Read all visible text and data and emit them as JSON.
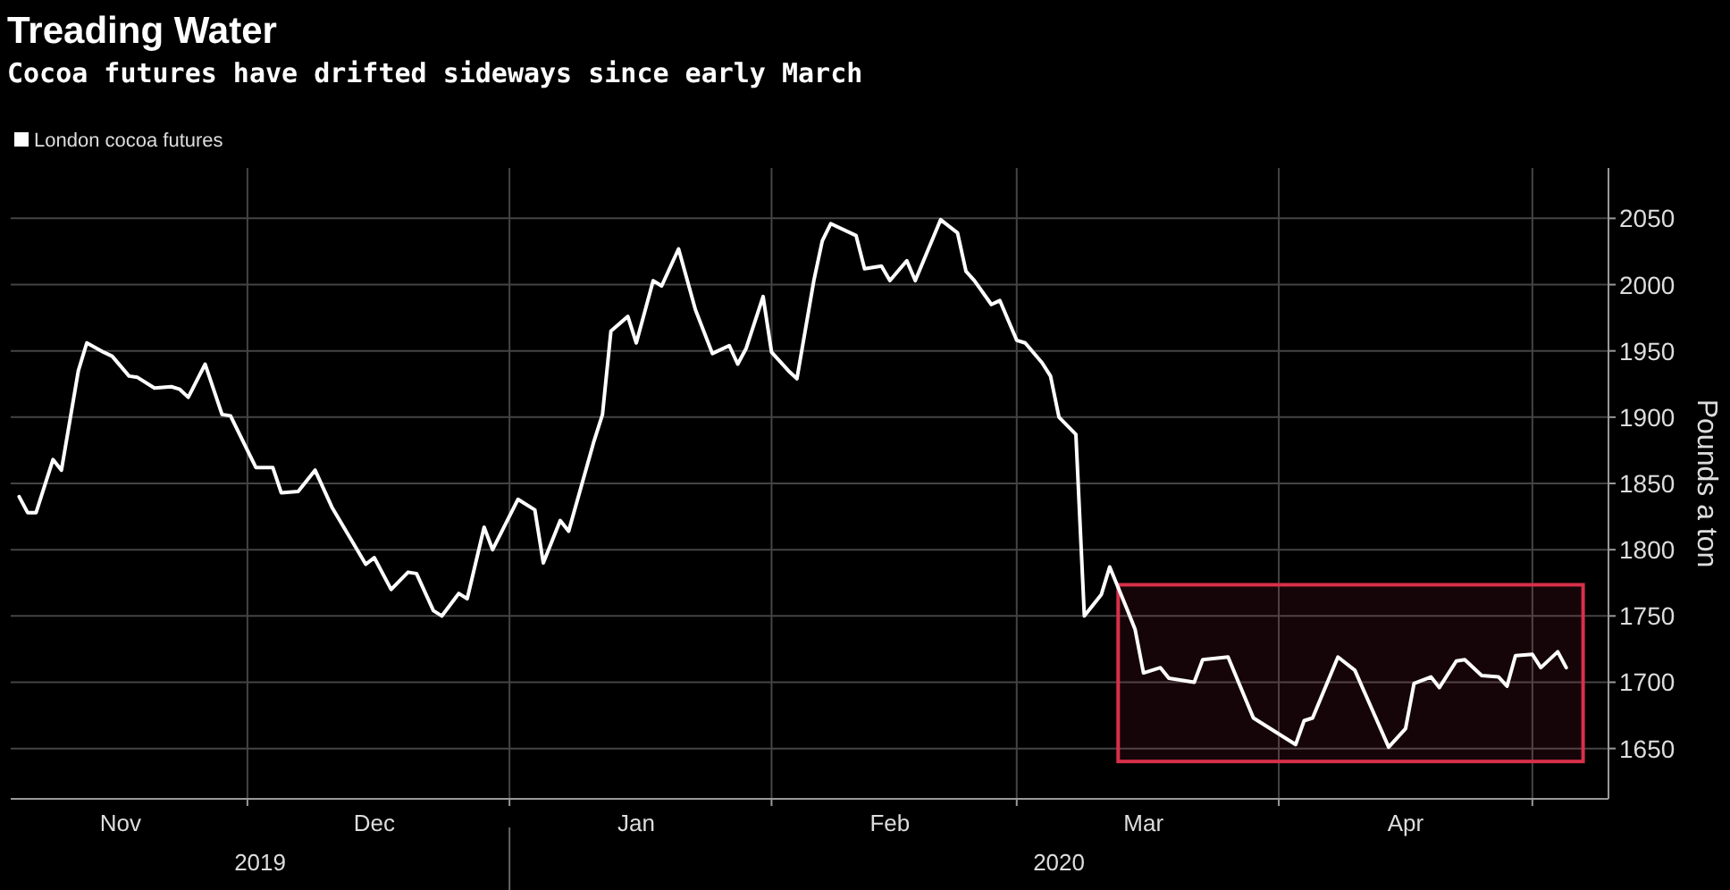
{
  "chart_data": {
    "type": "line",
    "title": "Treading Water",
    "subtitle": "Cocoa futures have drifted sideways since early March",
    "ylabel": "Pounds a ton",
    "x": [
      "2019-11-04",
      "2019-11-05",
      "2019-11-06",
      "2019-11-08",
      "2019-11-09",
      "2019-11-11",
      "2019-11-12",
      "2019-11-14",
      "2019-11-15",
      "2019-11-17",
      "2019-11-18",
      "2019-11-20",
      "2019-11-22",
      "2019-11-23",
      "2019-11-24",
      "2019-11-26",
      "2019-11-28",
      "2019-11-29",
      "2019-12-02",
      "2019-12-04",
      "2019-12-05",
      "2019-12-07",
      "2019-12-09",
      "2019-12-11",
      "2019-12-15",
      "2019-12-16",
      "2019-12-18",
      "2019-12-20",
      "2019-12-21",
      "2019-12-23",
      "2019-12-24",
      "2019-12-26",
      "2019-12-27",
      "2019-12-29",
      "2019-12-30",
      "2020-01-02",
      "2020-01-04",
      "2020-01-05",
      "2020-01-07",
      "2020-01-08",
      "2020-01-11",
      "2020-01-12",
      "2020-01-13",
      "2020-01-15",
      "2020-01-16",
      "2020-01-18",
      "2020-01-19",
      "2020-01-21",
      "2020-01-23",
      "2020-01-25",
      "2020-01-27",
      "2020-01-28",
      "2020-01-29",
      "2020-01-31",
      "2020-02-01",
      "2020-02-03",
      "2020-02-04",
      "2020-02-06",
      "2020-02-07",
      "2020-02-08",
      "2020-02-11",
      "2020-02-12",
      "2020-02-14",
      "2020-02-15",
      "2020-02-17",
      "2020-02-18",
      "2020-02-21",
      "2020-02-23",
      "2020-02-24",
      "2020-02-25",
      "2020-02-27",
      "2020-02-28",
      "2020-03-01",
      "2020-03-02",
      "2020-03-04",
      "2020-03-05",
      "2020-03-06",
      "2020-03-08",
      "2020-03-09",
      "2020-03-11",
      "2020-03-12",
      "2020-03-14",
      "2020-03-15",
      "2020-03-16",
      "2020-03-18",
      "2020-03-19",
      "2020-03-22",
      "2020-03-23",
      "2020-03-26",
      "2020-03-29",
      "2020-04-03",
      "2020-04-04",
      "2020-04-05",
      "2020-04-08",
      "2020-04-10",
      "2020-04-14",
      "2020-04-16",
      "2020-04-17",
      "2020-04-19",
      "2020-04-20",
      "2020-04-22",
      "2020-04-23",
      "2020-04-25",
      "2020-04-27",
      "2020-04-28",
      "2020-04-29",
      "2020-05-01",
      "2020-05-02",
      "2020-05-04",
      "2020-05-05"
    ],
    "series": [
      {
        "name": "London cocoa futures",
        "color": "#ffffff",
        "values": [
          1840,
          1828,
          1828,
          1868,
          1860,
          1935,
          1956,
          1949,
          1946,
          1931,
          1930,
          1922,
          1923,
          1921,
          1915,
          1940,
          1902,
          1901,
          1862,
          1862,
          1843,
          1844,
          1860,
          1832,
          1789,
          1794,
          1770,
          1783,
          1782,
          1754,
          1750,
          1767,
          1763,
          1817,
          1800,
          1838,
          1830,
          1790,
          1822,
          1814,
          1882,
          1902,
          1965,
          1976,
          1956,
          2003,
          1999,
          2027,
          1981,
          1948,
          1954,
          1940,
          1952,
          1991,
          1949,
          1935,
          1929,
          2003,
          2033,
          2046,
          2037,
          2012,
          2014,
          2003,
          2018,
          2003,
          2049,
          2039,
          2010,
          2003,
          1985,
          1988,
          1958,
          1956,
          1941,
          1931,
          1900,
          1887,
          1750,
          1766,
          1787,
          1756,
          1740,
          1707,
          1711,
          1703,
          1700,
          1717,
          1719,
          1673,
          1653,
          1671,
          1673,
          1719,
          1709,
          1651,
          1665,
          1699,
          1704,
          1696,
          1716,
          1717,
          1705,
          1704,
          1697,
          1720,
          1721,
          1711,
          1723,
          1711
        ]
      }
    ],
    "xlim": [
      "2019-11-03",
      "2020-05-10"
    ],
    "xticks": [
      {
        "value": "2019-11-16",
        "label": "Nov"
      },
      {
        "value": "2019-12-01",
        "label": null
      },
      {
        "value": "2019-12-16",
        "label": "Dec"
      },
      {
        "value": "2020-01-01",
        "label": null
      },
      {
        "value": "2020-01-16",
        "label": "Jan"
      },
      {
        "value": "2020-02-01",
        "label": null
      },
      {
        "value": "2020-02-15",
        "label": "Feb"
      },
      {
        "value": "2020-03-01",
        "label": null
      },
      {
        "value": "2020-03-16",
        "label": "Mar"
      },
      {
        "value": "2020-04-01",
        "label": null
      },
      {
        "value": "2020-04-16",
        "label": "Apr"
      },
      {
        "value": "2020-05-01",
        "label": null
      }
    ],
    "ylim": [
      1612,
      2088
    ],
    "yticks": [
      1650,
      1700,
      1750,
      1800,
      1850,
      1900,
      1950,
      2000,
      2050
    ],
    "grid": true,
    "legend": "top left",
    "bands": [
      {
        "axis": "x",
        "from": "2020-03-13",
        "to": "2020-05-07",
        "color": "#d8304a"
      }
    ],
    "annotations": [
      "2019",
      "2020"
    ]
  }
}
